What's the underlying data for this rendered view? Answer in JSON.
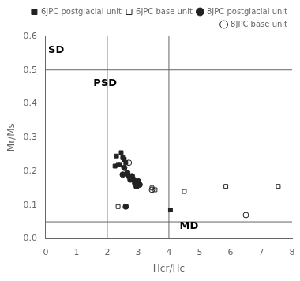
{
  "chart_data": {
    "type": "scatter",
    "xlabel": "Hcr/Hc",
    "ylabel": "Mr/Ms",
    "xlim": [
      0,
      8
    ],
    "ylim": [
      0,
      0.6
    ],
    "xticks": [
      0,
      1,
      2,
      3,
      4,
      5,
      6,
      7,
      8
    ],
    "yticks": [
      {
        "value": 0.0,
        "label": "0.0"
      },
      0.1,
      0.2,
      0.3,
      0.4,
      0.5,
      0.6
    ],
    "grid": false,
    "legend": "top",
    "reference_lines_x": [
      2.0,
      4.0
    ],
    "reference_lines_y": [
      0.05,
      0.5
    ],
    "line_color": "#666666",
    "annotations": [
      {
        "text": "SD",
        "x": 0.08,
        "y": 0.575,
        "anchor": "top"
      },
      {
        "text": "PSD",
        "x": 1.55,
        "y": 0.475,
        "anchor": "top"
      },
      {
        "text": "MD",
        "x": 4.35,
        "y": 0.022,
        "anchor": "bottom"
      }
    ],
    "series": [
      {
        "name": "6JPC postglacial unit",
        "color": "#222222",
        "marker": "filled-square",
        "x": [
          2.3,
          2.45,
          2.5,
          2.55,
          2.6,
          2.35,
          2.4,
          2.25,
          4.05
        ],
        "values": [
          0.245,
          0.255,
          0.24,
          0.235,
          0.225,
          0.22,
          0.22,
          0.215,
          0.085
        ]
      },
      {
        "name": "6JPC base unit",
        "color": "#222222",
        "marker": "open-square",
        "x": [
          2.35,
          3.45,
          3.55,
          4.5,
          5.85,
          7.55
        ],
        "values": [
          0.095,
          0.15,
          0.145,
          0.14,
          0.155,
          0.155
        ]
      },
      {
        "name": "8JPC postglacial unit",
        "color": "#222222",
        "marker": "filled-circle",
        "x": [
          2.55,
          2.65,
          2.7,
          2.75,
          2.8,
          2.85,
          2.9,
          2.95,
          3.0,
          3.05,
          2.6,
          2.5
        ],
        "values": [
          0.21,
          0.195,
          0.185,
          0.175,
          0.185,
          0.175,
          0.165,
          0.155,
          0.17,
          0.16,
          0.095,
          0.19
        ]
      },
      {
        "name": "8JPC base unit",
        "color": "#222222",
        "marker": "open-circle",
        "x": [
          2.7,
          3.45,
          6.5
        ],
        "values": [
          0.225,
          0.145,
          0.07
        ]
      }
    ]
  }
}
